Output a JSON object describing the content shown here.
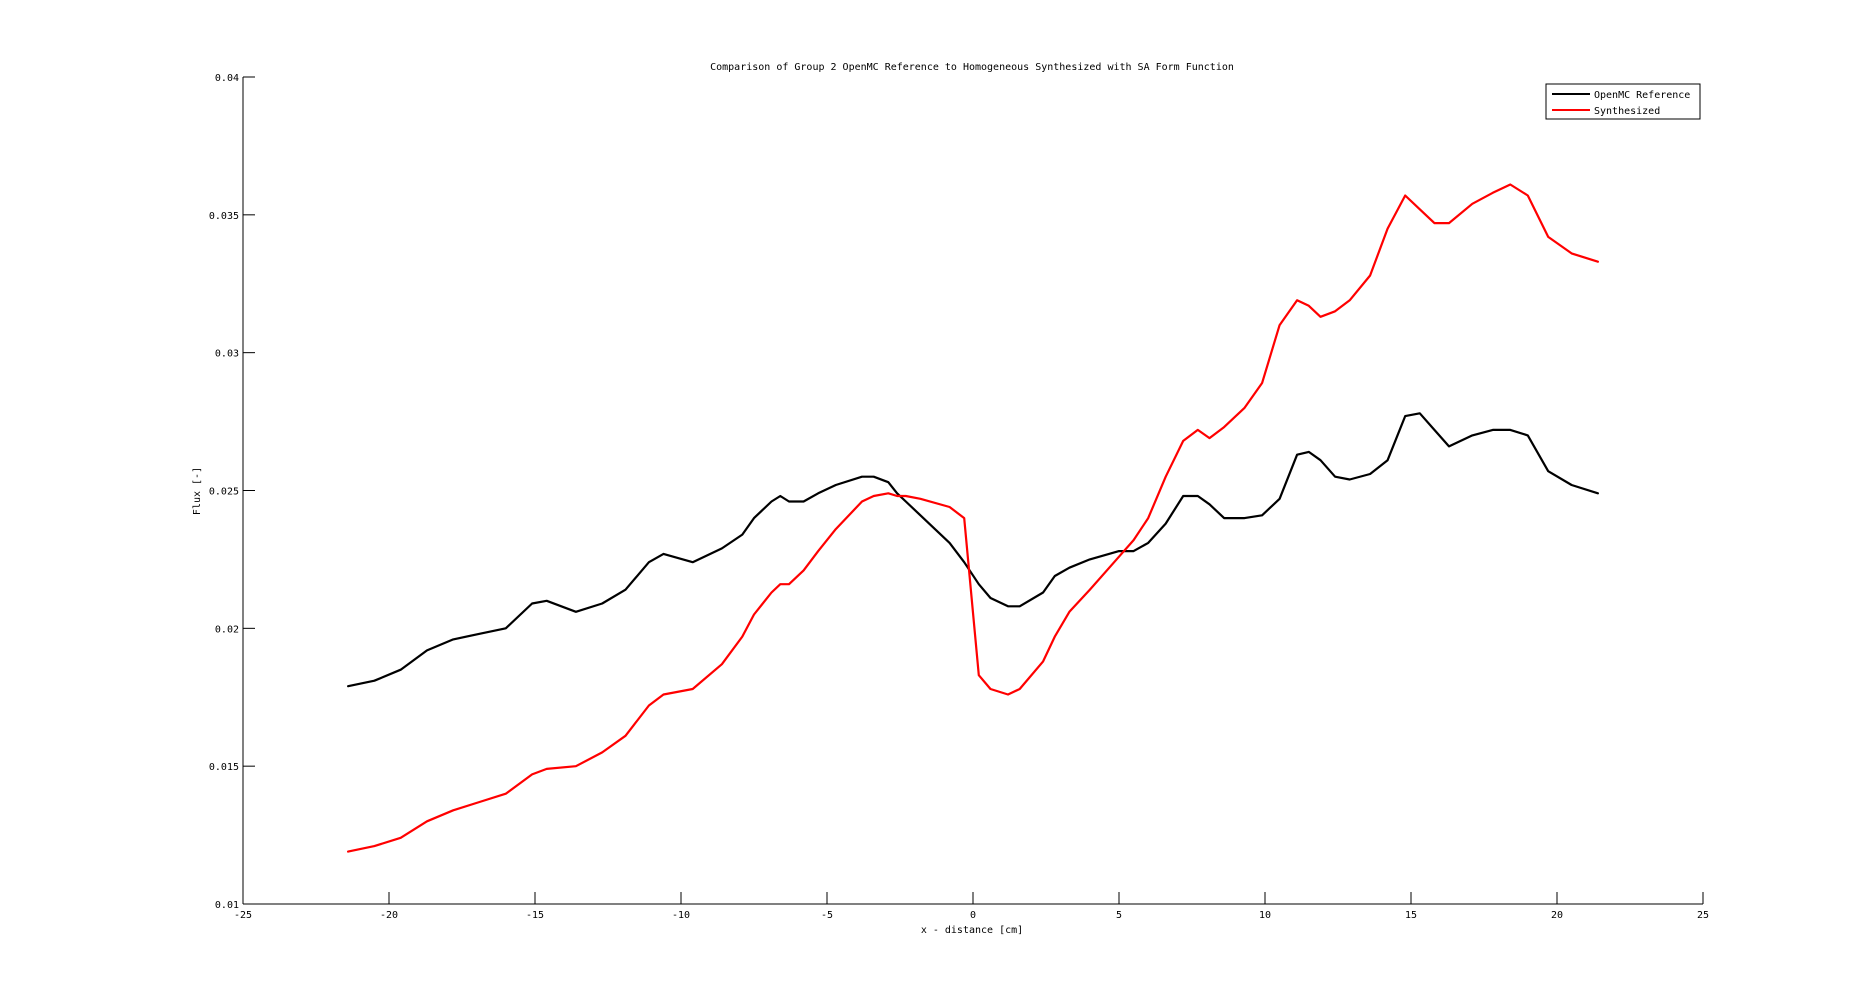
{
  "chart_data": {
    "type": "line",
    "title": "Comparison of Group 2 OpenMC Reference to Homogeneous Synthesized with SA Form Function",
    "xlabel": "x - distance [cm]",
    "ylabel": "Flux [-]",
    "xlim": [
      -25,
      25
    ],
    "ylim": [
      0.01,
      0.04
    ],
    "x_ticks": [
      -25,
      -20,
      -15,
      -10,
      -5,
      0,
      5,
      10,
      15,
      20,
      25
    ],
    "x_tick_labels": [
      "-25",
      "-20",
      "-15",
      "-10",
      "-5",
      "0",
      "5",
      "10",
      "15",
      "20",
      "25"
    ],
    "y_ticks": [
      0.01,
      0.015,
      0.02,
      0.025,
      0.03,
      0.035,
      0.04
    ],
    "y_tick_labels": [
      "0.01",
      "0.015",
      "0.02",
      "0.025",
      "0.03",
      "0.035",
      "0.04"
    ],
    "grid": false,
    "legend_position": "top-right",
    "series": [
      {
        "name": "OpenMC Reference",
        "color": "#000000",
        "x": [
          -21.4,
          -20.5,
          -19.6,
          -18.7,
          -17.8,
          -16.9,
          -16.0,
          -15.1,
          -14.6,
          -13.6,
          -12.7,
          -11.9,
          -11.1,
          -10.6,
          -9.6,
          -8.6,
          -7.9,
          -7.5,
          -6.9,
          -6.6,
          -6.3,
          -5.8,
          -5.3,
          -4.7,
          -3.8,
          -3.4,
          -2.9,
          -2.6,
          -2.3,
          -1.8,
          -0.8,
          -0.3,
          0.2,
          0.6,
          1.2,
          1.6,
          2.4,
          2.8,
          3.3,
          4.0,
          5.0,
          5.5,
          6.0,
          6.6,
          7.2,
          7.7,
          8.1,
          8.6,
          9.3,
          9.9,
          10.5,
          11.1,
          11.5,
          11.9,
          12.4,
          12.9,
          13.6,
          14.2,
          14.8,
          15.3,
          15.8,
          16.3,
          17.1,
          17.8,
          18.4,
          19.0,
          19.7,
          20.5,
          21.4
        ],
        "y": [
          0.0179,
          0.0181,
          0.0185,
          0.0192,
          0.0196,
          0.0198,
          0.02,
          0.0209,
          0.021,
          0.0206,
          0.0209,
          0.0214,
          0.0224,
          0.0227,
          0.0224,
          0.0229,
          0.0234,
          0.024,
          0.0246,
          0.0248,
          0.0246,
          0.0246,
          0.0249,
          0.0252,
          0.0255,
          0.0255,
          0.0253,
          0.0249,
          0.0246,
          0.0241,
          0.0231,
          0.0224,
          0.0216,
          0.0211,
          0.0208,
          0.0208,
          0.0213,
          0.0219,
          0.0222,
          0.0225,
          0.0228,
          0.0228,
          0.0231,
          0.0238,
          0.0248,
          0.0248,
          0.0245,
          0.024,
          0.024,
          0.0241,
          0.0247,
          0.0263,
          0.0264,
          0.0261,
          0.0255,
          0.0254,
          0.0256,
          0.0261,
          0.0277,
          0.0278,
          0.0272,
          0.0266,
          0.027,
          0.0272,
          0.0272,
          0.027,
          0.0257,
          0.0252,
          0.0249
        ]
      },
      {
        "name": "Synthesized",
        "color": "#ff0000",
        "x": [
          -21.4,
          -20.5,
          -19.6,
          -18.7,
          -17.8,
          -16.9,
          -16.0,
          -15.1,
          -14.6,
          -13.6,
          -12.7,
          -11.9,
          -11.1,
          -10.6,
          -9.6,
          -8.6,
          -7.9,
          -7.5,
          -6.9,
          -6.6,
          -6.3,
          -5.8,
          -5.3,
          -4.7,
          -3.8,
          -3.4,
          -2.9,
          -2.6,
          -2.3,
          -1.8,
          -0.8,
          -0.3,
          0.2,
          0.6,
          1.2,
          1.6,
          2.4,
          2.8,
          3.3,
          4.0,
          5.0,
          5.5,
          6.0,
          6.6,
          7.2,
          7.7,
          8.1,
          8.6,
          9.3,
          9.9,
          10.5,
          11.1,
          11.5,
          11.9,
          12.4,
          12.9,
          13.6,
          14.2,
          14.8,
          15.3,
          15.8,
          16.3,
          17.1,
          17.8,
          18.4,
          19.0,
          19.7,
          20.5,
          21.4
        ],
        "y": [
          0.0119,
          0.0121,
          0.0124,
          0.013,
          0.0134,
          0.0137,
          0.014,
          0.0147,
          0.0149,
          0.015,
          0.0155,
          0.0161,
          0.0172,
          0.0176,
          0.0178,
          0.0187,
          0.0197,
          0.0205,
          0.0213,
          0.0216,
          0.0216,
          0.0221,
          0.0228,
          0.0236,
          0.0246,
          0.0248,
          0.0249,
          0.0248,
          0.0248,
          0.0247,
          0.0244,
          0.024,
          0.0183,
          0.0178,
          0.0176,
          0.0178,
          0.0188,
          0.0197,
          0.0206,
          0.0214,
          0.0226,
          0.0232,
          0.024,
          0.0255,
          0.0268,
          0.0272,
          0.0269,
          0.0273,
          0.028,
          0.0289,
          0.031,
          0.0319,
          0.0317,
          0.0313,
          0.0315,
          0.0319,
          0.0328,
          0.0345,
          0.0357,
          0.0352,
          0.0347,
          0.0347,
          0.0354,
          0.0358,
          0.0361,
          0.0357,
          0.0342,
          0.0336,
          0.0333
        ]
      }
    ]
  }
}
